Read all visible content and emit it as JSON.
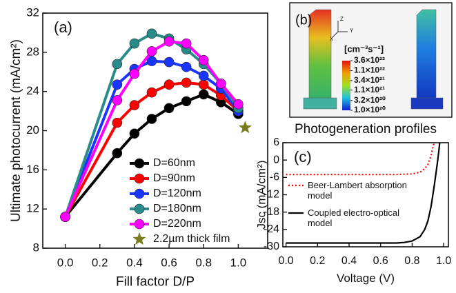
{
  "chart_data": [
    {
      "type": "line",
      "panel_label": "(a)",
      "x_label": "Fill factor D/P",
      "y_label": "Ultimate photocurrent (mA/cm²)",
      "x": [
        0,
        0.3,
        0.4,
        0.5,
        0.6,
        0.7,
        0.8,
        0.9,
        1.0
      ],
      "series": [
        {
          "name": "D=60nm",
          "color": "#000000",
          "marker": "circle",
          "values": [
            11.2,
            17.7,
            19.7,
            21.2,
            22.3,
            23.0,
            23.7,
            22.9,
            21.7
          ]
        },
        {
          "name": "D=90nm",
          "color": "#ff0000",
          "marker": "circle",
          "values": [
            11.2,
            20.8,
            22.6,
            23.9,
            24.7,
            24.9,
            24.7,
            23.6,
            22.0
          ]
        },
        {
          "name": "D=120nm",
          "color": "#1a35ff",
          "marker": "circle",
          "values": [
            11.2,
            24.7,
            26.3,
            27.1,
            27.0,
            26.5,
            25.6,
            24.3,
            22.0
          ]
        },
        {
          "name": "D=180nm",
          "color": "#2a8b8b",
          "marker": "circle",
          "values": [
            11.2,
            26.8,
            28.9,
            29.9,
            29.4,
            28.3,
            26.8,
            24.8,
            22.3
          ]
        },
        {
          "name": "D=220nm",
          "color": "#ff00ff",
          "marker": "circle",
          "values": [
            11.2,
            23.1,
            25.8,
            28.1,
            29.1,
            28.9,
            27.2,
            24.8,
            22.7
          ]
        },
        {
          "name": "2.2µm thick film",
          "color": "#7a7a1e",
          "marker": "star",
          "x": [
            1.04
          ],
          "values": [
            20.3
          ]
        }
      ],
      "xlim": [
        -0.13,
        1.17
      ],
      "xticks": [
        {
          "value": 0,
          "label": "0.0"
        },
        {
          "value": 0.2,
          "label": "0.2"
        },
        {
          "value": 0.4,
          "label": "0.4"
        },
        {
          "value": 0.6,
          "label": "0.6"
        },
        {
          "value": 0.8,
          "label": "0.8"
        },
        {
          "value": 1.0,
          "label": "1.0"
        }
      ],
      "ylim": [
        8,
        32
      ],
      "yticks": [
        8,
        12,
        16,
        20,
        24,
        28,
        32
      ]
    },
    {
      "type": "colorbar",
      "panel_label": "(b)",
      "title": "Photogeneration profiles",
      "unit_label": "[cm⁻³s⁻¹]",
      "axis_letters": [
        "Z",
        "Y",
        "X"
      ],
      "log_scale": true,
      "ylim": [
        1e+20,
        3.6e+22
      ],
      "yticks": [
        {
          "value": 3.6e+22,
          "label": "3.6×10²²"
        },
        {
          "value": 1.1e+22,
          "label": "1.1×10²²"
        },
        {
          "value": 3.4e+21,
          "label": "3.4×10²¹"
        },
        {
          "value": 1.1e+21,
          "label": "1.1×10²¹"
        },
        {
          "value": 3.2e+20,
          "label": "3.2×10²⁰"
        },
        {
          "value": 1e+20,
          "label": "1.0×10²⁰"
        }
      ]
    },
    {
      "type": "line",
      "panel_label": "(c)",
      "x_label": "Voltage (V)",
      "y_label": "Jsc (mA/cm²)",
      "series": [
        {
          "name": "Beer-Lambert absorption model",
          "color": "#ff0000",
          "line_style": "dotted",
          "x": [
            0,
            0.2,
            0.4,
            0.6,
            0.7,
            0.75,
            0.8,
            0.85,
            0.88,
            0.9,
            0.92,
            0.93,
            0.94
          ],
          "values": [
            -5.0,
            -5.0,
            -5.0,
            -5.0,
            -5.0,
            -4.9,
            -4.8,
            -4.2,
            -3.0,
            -1.5,
            1.5,
            4.0,
            6.0
          ]
        },
        {
          "name": "Coupled electro-optical model",
          "color": "#000000",
          "line_style": "solid",
          "x": [
            0,
            0.2,
            0.4,
            0.6,
            0.7,
            0.75,
            0.8,
            0.85,
            0.88,
            0.9,
            0.92,
            0.94,
            0.96,
            0.97,
            0.975
          ],
          "values": [
            -28.7,
            -28.7,
            -28.7,
            -28.7,
            -28.7,
            -28.5,
            -28.0,
            -26.5,
            -24.0,
            -21.0,
            -16.0,
            -9.0,
            -1.0,
            3.5,
            6.0
          ]
        }
      ],
      "xlim": [
        -0.02,
        1.03
      ],
      "xticks": [
        {
          "value": 0,
          "label": "0.0"
        },
        {
          "value": 0.2,
          "label": "0.2"
        },
        {
          "value": 0.4,
          "label": "0.4"
        },
        {
          "value": 0.6,
          "label": "0.6"
        },
        {
          "value": 0.8,
          "label": "0.8"
        },
        {
          "value": 1.0,
          "label": "1.0"
        }
      ],
      "ylim": [
        -30,
        6
      ],
      "yticks": [
        -30,
        -24,
        -18,
        -12,
        -6,
        0,
        6
      ]
    }
  ]
}
